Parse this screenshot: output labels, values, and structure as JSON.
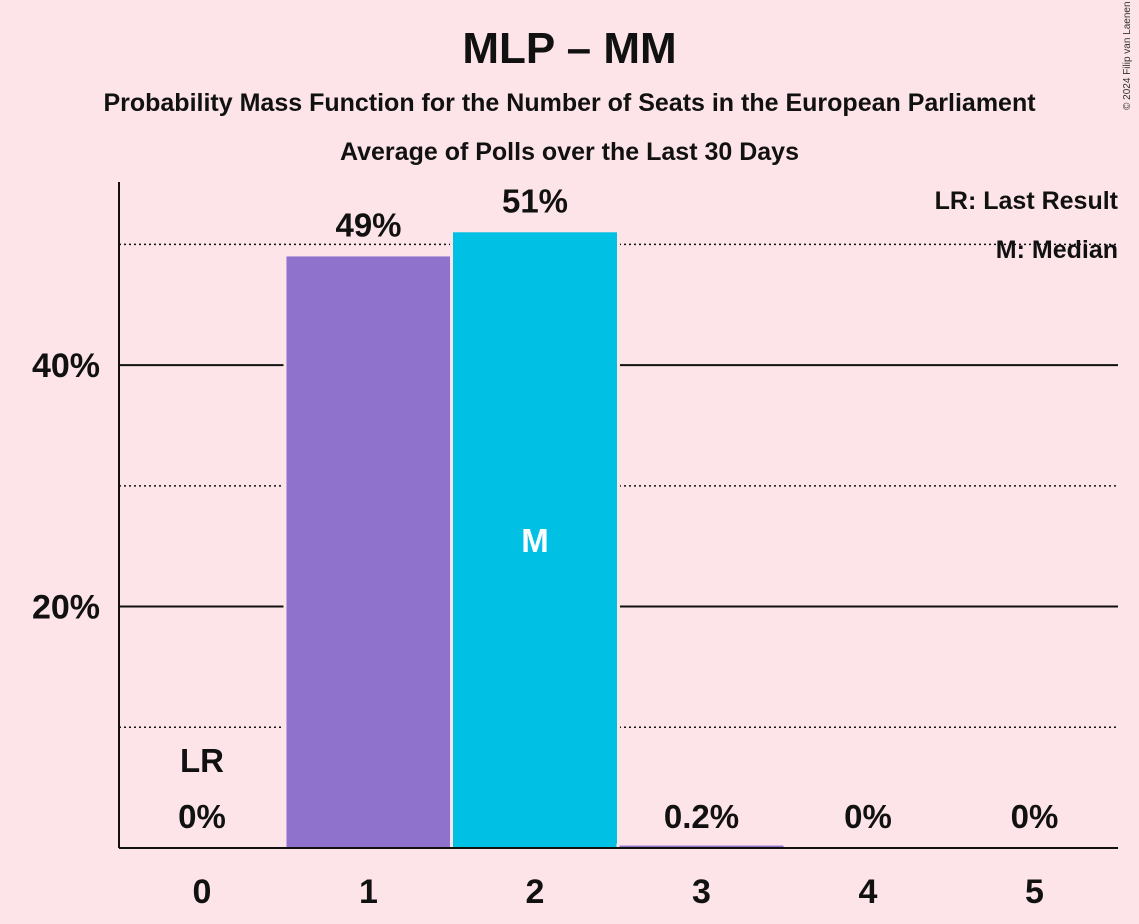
{
  "header": {
    "title": "MLP – MM",
    "subtitle": "Probability Mass Function for the Number of Seats in the European Parliament",
    "subtitle2": "Average of Polls over the Last 30 Days",
    "copyright": "© 2024 Filip van Laenen"
  },
  "chart_data": {
    "type": "bar",
    "categories": [
      "0",
      "1",
      "2",
      "3",
      "4",
      "5"
    ],
    "values": [
      0,
      49,
      51,
      0.2,
      0,
      0
    ],
    "data_labels": [
      "0%",
      "49%",
      "51%",
      "0.2%",
      "0%",
      "0%"
    ],
    "bar_colors": [
      "#8e72cc",
      "#8e72cc",
      "#00c0e4",
      "#8e72cc",
      "#8e72cc",
      "#8e72cc"
    ],
    "ylim": [
      0,
      55
    ],
    "y_ticks_major": [
      20,
      40
    ],
    "y_tick_labels": [
      "20%",
      "40%"
    ],
    "y_ticks_minor": [
      10,
      30,
      50
    ],
    "median_seat": "2",
    "median_marker": "M",
    "last_result_seat": "0",
    "last_result_marker": "LR",
    "legend": [
      "LR: Last Result",
      "M: Median"
    ]
  },
  "colors": {
    "background": "#fce4e8",
    "median_bar": "#00c0e4",
    "other_bar": "#8e72cc"
  }
}
